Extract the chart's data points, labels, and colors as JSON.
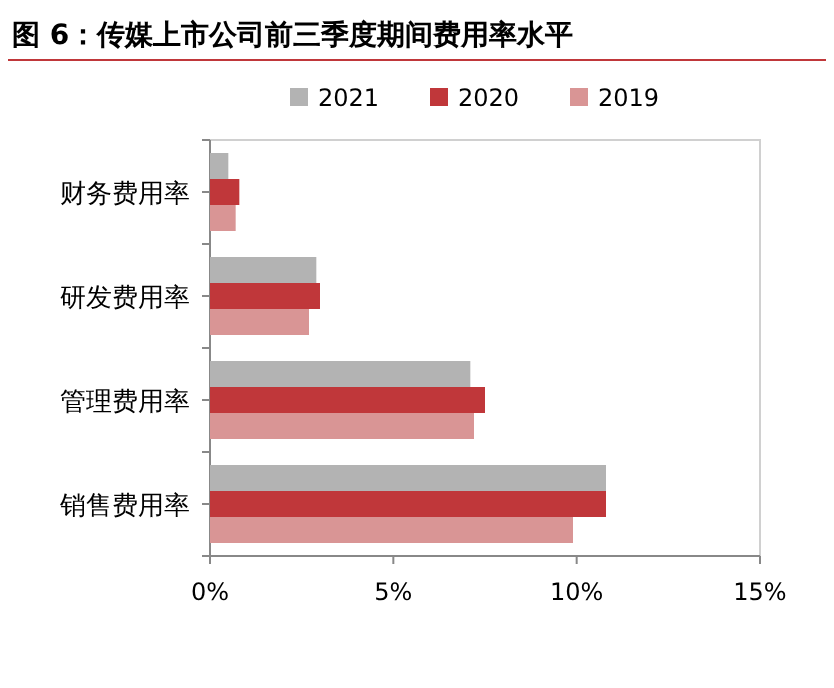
{
  "chart_data": {
    "type": "bar",
    "orientation": "horizontal",
    "title": "图 6：传媒上市公司前三季度期间费用率水平",
    "categories": [
      "财务费用率",
      "研发费用率",
      "管理费用率",
      "销售费用率"
    ],
    "series": [
      {
        "name": "2021",
        "color": "#b3b3b3",
        "values": [
          0.5,
          2.9,
          7.1,
          10.8
        ]
      },
      {
        "name": "2020",
        "color": "#c0373a",
        "values": [
          0.8,
          3.0,
          7.5,
          10.8
        ]
      },
      {
        "name": "2019",
        "color": "#d99595",
        "values": [
          0.7,
          2.7,
          7.2,
          9.9
        ]
      }
    ],
    "xlim": [
      0,
      15
    ],
    "xticks": [
      {
        "value": 0,
        "label": "0%"
      },
      {
        "value": 5,
        "label": "5%"
      },
      {
        "value": 10,
        "label": "10%"
      },
      {
        "value": 15,
        "label": "15%"
      }
    ],
    "legend": "top",
    "grid": false
  }
}
